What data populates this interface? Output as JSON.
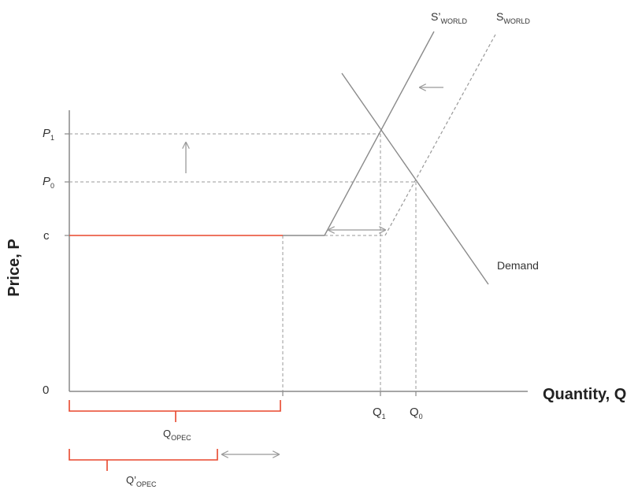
{
  "diagram": {
    "axes": {
      "y_title": "Price, P",
      "x_title": "Quantity, Q",
      "origin": "0"
    },
    "y_ticks": {
      "p1": {
        "main": "P",
        "sub": "1"
      },
      "p0": {
        "main": "P",
        "sub": "0"
      },
      "c": "c"
    },
    "x_ticks": {
      "q1": {
        "main": "Q",
        "sub": "1"
      },
      "q0": {
        "main": "Q",
        "sub": "0"
      }
    },
    "curves": {
      "supply_new": {
        "main": "S’",
        "sub": "WORLD"
      },
      "supply_old": {
        "main": "S",
        "sub": "WORLD"
      },
      "demand": "Demand"
    },
    "brackets": {
      "opec": {
        "main": "Q",
        "sub": "OPEC"
      },
      "opec_new": {
        "main": "Q’",
        "sub": "OPEC"
      }
    },
    "colors": {
      "axis": "#888888",
      "curve": "#8a8a8a",
      "dashed": "#999999",
      "opec": "#e8472c",
      "arrow": "#999999"
    }
  }
}
